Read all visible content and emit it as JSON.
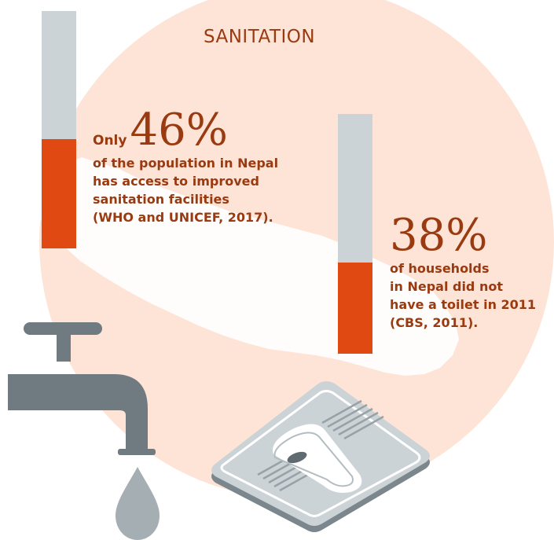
{
  "title": "SANITATION",
  "colors": {
    "accent_orange": "#e04a12",
    "bar_grey": "#ccd3d6",
    "text_brown": "#9a3a10",
    "circle_peach": "#fde4d6",
    "tap_grey": "#6f7b80",
    "drop_grey": "#a4aeb3"
  },
  "stats": [
    {
      "prefix": "Only",
      "value": "46%",
      "percent": 46,
      "description_lines": [
        "of the population in Nepal",
        "has access to improved",
        "sanitation facilities",
        "(WHO and UNICEF, 2017)."
      ]
    },
    {
      "prefix": "",
      "value": "38%",
      "percent": 38,
      "description_lines": [
        "of households",
        "in Nepal did not",
        "have a toilet in 2011",
        "(CBS, 2011)."
      ]
    }
  ],
  "icons": {
    "tap": "water-tap-icon",
    "drop": "water-drop-icon",
    "toilet": "squat-toilet-icon",
    "map": "nepal-map-icon"
  }
}
